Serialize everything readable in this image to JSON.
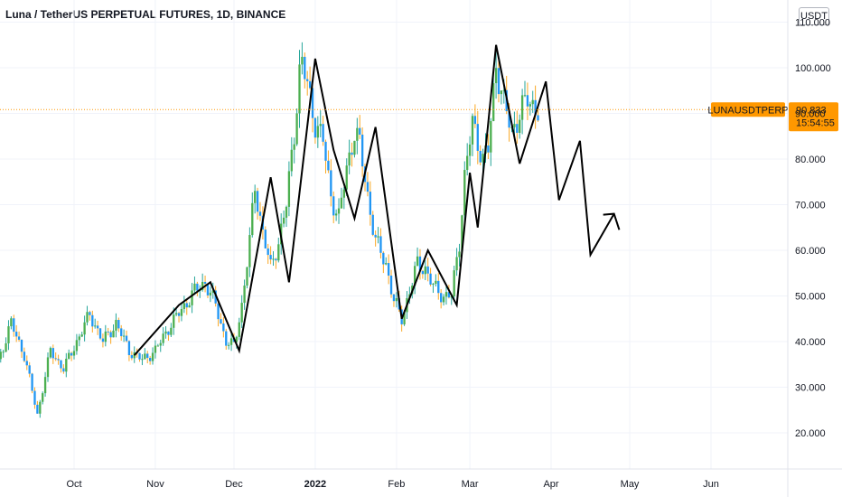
{
  "header": {
    "title": "Luna / TetherUS PERPETUAL FUTURES, 1D, BINANCE"
  },
  "price_scale": {
    "unit_label": "USDT"
  },
  "chart_data": {
    "type": "candlestick",
    "title": "Luna / TetherUS PERPETUAL FUTURES, 1D, BINANCE",
    "y_unit": "USDT",
    "ylim": [
      14,
      116
    ],
    "y_ticks": [
      {
        "value": 110,
        "label": "110.000"
      },
      {
        "value": 100,
        "label": "100.000"
      },
      {
        "value": 90,
        "label": "90.000"
      },
      {
        "value": 80,
        "label": "80.000"
      },
      {
        "value": 70,
        "label": "70.000"
      },
      {
        "value": 60,
        "label": "60.000"
      },
      {
        "value": 50,
        "label": "50.000"
      },
      {
        "value": 40,
        "label": "40.000"
      },
      {
        "value": 30,
        "label": "30.000"
      },
      {
        "value": 20,
        "label": "20.000"
      }
    ],
    "x_ticks": [
      {
        "label": "Oct",
        "date": "2021-10-01",
        "bold": false
      },
      {
        "label": "Nov",
        "date": "2021-11-01",
        "bold": false
      },
      {
        "label": "Dec",
        "date": "2021-12-01",
        "bold": false
      },
      {
        "label": "2022",
        "date": "2022-01-01",
        "bold": true
      },
      {
        "label": "Feb",
        "date": "2022-02-01",
        "bold": false
      },
      {
        "label": "Mar",
        "date": "2022-03-01",
        "bold": false
      },
      {
        "label": "Apr",
        "date": "2022-04-01",
        "bold": false
      },
      {
        "label": "May",
        "date": "2022-05-01",
        "bold": false
      },
      {
        "label": "Jun",
        "date": "2022-06-01",
        "bold": false
      }
    ],
    "x_range": [
      "2021-09-01",
      "2022-06-30"
    ],
    "current_price": {
      "value": 90.833,
      "label": "90.833",
      "countdown": "15:54:55",
      "symbol": "LUNAUSDTPERP"
    },
    "close_path": [
      [
        "2021-09-01",
        34
      ],
      [
        "2021-09-07",
        44
      ],
      [
        "2021-09-12",
        37
      ],
      [
        "2021-09-17",
        24
      ],
      [
        "2021-09-22",
        38
      ],
      [
        "2021-09-27",
        34
      ],
      [
        "2021-10-02",
        40
      ],
      [
        "2021-10-07",
        46
      ],
      [
        "2021-10-12",
        40
      ],
      [
        "2021-10-17",
        44
      ],
      [
        "2021-10-22",
        38
      ],
      [
        "2021-10-27",
        36
      ],
      [
        "2021-11-01",
        38
      ],
      [
        "2021-11-06",
        43
      ],
      [
        "2021-11-11",
        47
      ],
      [
        "2021-11-16",
        51
      ],
      [
        "2021-11-20",
        53
      ],
      [
        "2021-11-24",
        48
      ],
      [
        "2021-11-28",
        40
      ],
      [
        "2021-12-01",
        39
      ],
      [
        "2021-12-04",
        48
      ],
      [
        "2021-12-07",
        62
      ],
      [
        "2021-12-09",
        74
      ],
      [
        "2021-12-12",
        64
      ],
      [
        "2021-12-15",
        56
      ],
      [
        "2021-12-18",
        62
      ],
      [
        "2021-12-21",
        70
      ],
      [
        "2021-12-24",
        86
      ],
      [
        "2021-12-26",
        99
      ],
      [
        "2021-12-27",
        101
      ],
      [
        "2021-12-29",
        96
      ],
      [
        "2022-01-01",
        88
      ],
      [
        "2022-01-04",
        84
      ],
      [
        "2022-01-07",
        72
      ],
      [
        "2022-01-10",
        67
      ],
      [
        "2022-01-13",
        78
      ],
      [
        "2022-01-16",
        86
      ],
      [
        "2022-01-18",
        83
      ],
      [
        "2022-01-21",
        72
      ],
      [
        "2022-01-24",
        62
      ],
      [
        "2022-01-28",
        57
      ],
      [
        "2022-01-31",
        49
      ],
      [
        "2022-02-03",
        45
      ],
      [
        "2022-02-06",
        51
      ],
      [
        "2022-02-09",
        57
      ],
      [
        "2022-02-12",
        56
      ],
      [
        "2022-02-15",
        52
      ],
      [
        "2022-02-19",
        50
      ],
      [
        "2022-02-22",
        50
      ],
      [
        "2022-02-25",
        62
      ],
      [
        "2022-02-27",
        76
      ],
      [
        "2022-03-02",
        88
      ],
      [
        "2022-03-06",
        80
      ],
      [
        "2022-03-08",
        82
      ],
      [
        "2022-03-11",
        101
      ],
      [
        "2022-03-14",
        92
      ],
      [
        "2022-03-17",
        86
      ],
      [
        "2022-03-20",
        90
      ],
      [
        "2022-03-23",
        93
      ],
      [
        "2022-03-27",
        90.8
      ]
    ],
    "trendlines": [
      {
        "name": "historical-swing-line",
        "points": [
          [
            "2021-10-24",
            37
          ],
          [
            "2021-11-10",
            48
          ],
          [
            "2021-11-22",
            53
          ],
          [
            "2021-12-03",
            38
          ],
          [
            "2021-12-15",
            76
          ],
          [
            "2021-12-22",
            53
          ],
          [
            "2022-01-01",
            102
          ],
          [
            "2022-01-08",
            82
          ],
          [
            "2022-01-16",
            67
          ],
          [
            "2022-01-24",
            87
          ],
          [
            "2022-02-03",
            45
          ],
          [
            "2022-02-13",
            60
          ],
          [
            "2022-02-24",
            48
          ],
          [
            "2022-03-01",
            77
          ],
          [
            "2022-03-04",
            65
          ],
          [
            "2022-03-11",
            105
          ],
          [
            "2022-03-20",
            79
          ],
          [
            "2022-03-30",
            97
          ],
          [
            "2022-04-04",
            71
          ],
          [
            "2022-04-12",
            84
          ],
          [
            "2022-04-16",
            59
          ],
          [
            "2022-04-25",
            68
          ]
        ]
      }
    ],
    "arrow": {
      "points": [
        [
          "2022-04-16",
          59
        ],
        [
          "2022-04-25",
          68
        ],
        [
          "2022-04-27",
          64.5
        ]
      ]
    },
    "colors": {
      "up": "#4caf50",
      "down": "#2196f3",
      "wick_up": "#26a69a",
      "wick_down": "#f9a825",
      "trendline": "#000000",
      "current_price": "#ff9800",
      "grid": "#f0f3fa",
      "axis_line": "#e0e3eb"
    },
    "grid": true
  }
}
